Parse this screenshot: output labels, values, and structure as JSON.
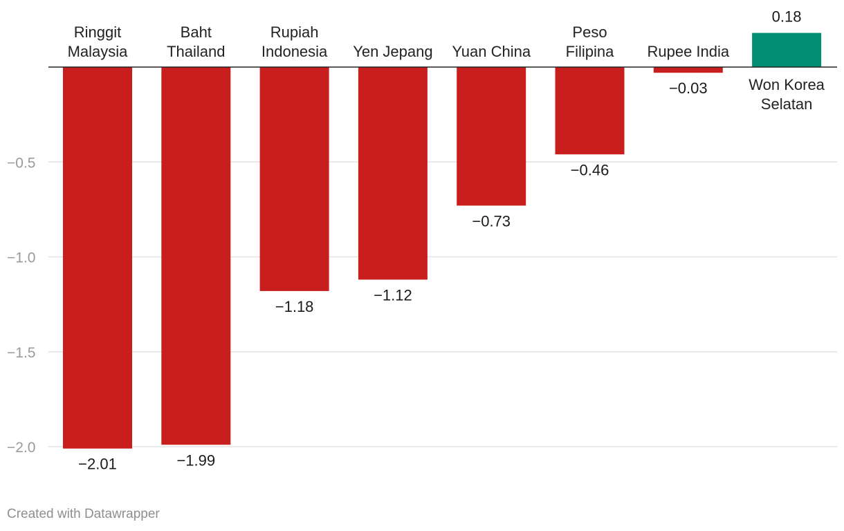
{
  "chart_data": {
    "type": "bar",
    "categories": [
      [
        "Ringgit",
        "Malaysia"
      ],
      [
        "Baht",
        "Thailand"
      ],
      [
        "Rupiah",
        "Indonesia"
      ],
      [
        "Yen Jepang"
      ],
      [
        "Yuan China"
      ],
      [
        "Peso",
        "Filipina"
      ],
      [
        "Rupee India"
      ],
      [
        "Won Korea",
        "Selatan"
      ]
    ],
    "values": [
      -2.01,
      -1.99,
      -1.18,
      -1.12,
      -0.73,
      -0.46,
      -0.03,
      0.18
    ],
    "value_labels": [
      "−2.01",
      "−1.99",
      "−1.18",
      "−1.12",
      "−0.73",
      "−0.46",
      "−0.03",
      "0.18"
    ],
    "yticks": [
      -0.5,
      -1.0,
      -1.5,
      -2.0
    ],
    "ytick_labels": [
      "−0.5",
      "−1.0",
      "−1.5",
      "−2.0"
    ],
    "ylim": [
      -2.0,
      0.18
    ],
    "grid": true,
    "colors": {
      "negative": "#c81e1e",
      "positive": "#008f72"
    }
  },
  "footer": {
    "credit": "Created with Datawrapper"
  }
}
